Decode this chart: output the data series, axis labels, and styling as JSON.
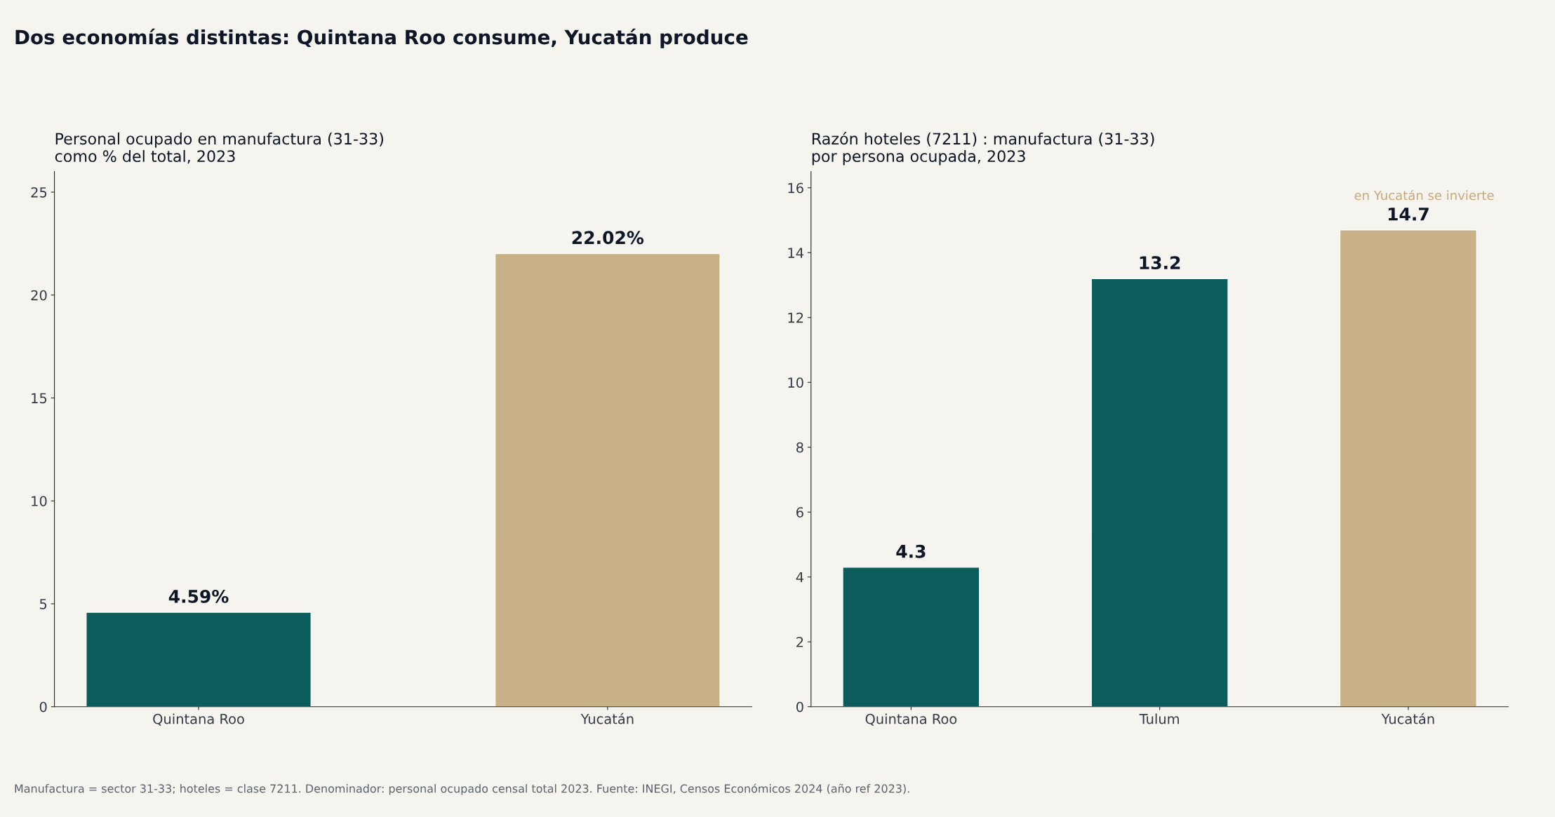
{
  "chart_data": [
    {
      "type": "bar",
      "title": "Dos economías distintas: Quintana Roo consume, Yucatán produce",
      "subtitle": "Personal ocupado en manufactura (31-33)\ncomo % del total, 2023",
      "categories": [
        "Quintana Roo",
        "Yucatán"
      ],
      "values": [
        4.59,
        22.02
      ],
      "colors": [
        "#0b5c5a",
        "#c9b187"
      ],
      "value_labels": [
        "4.59%",
        "22.02%"
      ],
      "ylim": [
        0,
        26
      ],
      "yticks": [
        0,
        5,
        10,
        15,
        20,
        25
      ],
      "grid": false,
      "annotations": [
        "Manufactura = sector 31-33; hoteles = clase 7211. Denominador: personal ocupado censal total 2023. Fuente: INEGI, Censos Económicos 2024 (año ref 2023)."
      ]
    },
    {
      "type": "bar",
      "subtitle": "Razón hoteles (7211) : manufactura (31-33)\npor persona ocupada, 2023",
      "categories": [
        "Quintana Roo",
        "Tulum",
        "Yucatán"
      ],
      "values": [
        4.3,
        13.2,
        14.7
      ],
      "colors": [
        "#0b5c5a",
        "#0b5c5a",
        "#c9b187"
      ],
      "data_labels": true,
      "ylim": [
        0,
        16.5
      ],
      "yticks": [
        0,
        2,
        4,
        6,
        8,
        10,
        12,
        14,
        16
      ],
      "grid": false,
      "annotations": [
        "en Yucatán se invierte"
      ]
    }
  ]
}
